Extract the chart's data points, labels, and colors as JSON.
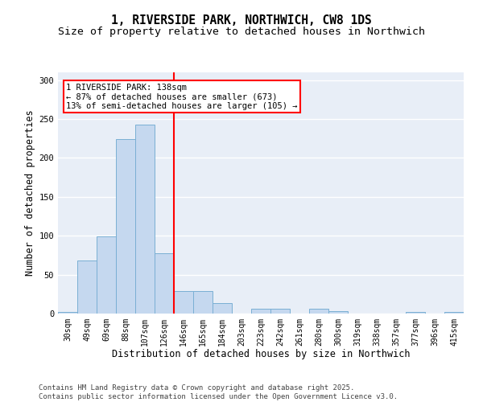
{
  "title_line1": "1, RIVERSIDE PARK, NORTHWICH, CW8 1DS",
  "title_line2": "Size of property relative to detached houses in Northwich",
  "xlabel": "Distribution of detached houses by size in Northwich",
  "ylabel": "Number of detached properties",
  "categories": [
    "30sqm",
    "49sqm",
    "69sqm",
    "88sqm",
    "107sqm",
    "126sqm",
    "146sqm",
    "165sqm",
    "184sqm",
    "203sqm",
    "223sqm",
    "242sqm",
    "261sqm",
    "280sqm",
    "300sqm",
    "319sqm",
    "338sqm",
    "357sqm",
    "377sqm",
    "396sqm",
    "415sqm"
  ],
  "values": [
    2,
    68,
    99,
    224,
    243,
    77,
    29,
    29,
    13,
    0,
    6,
    6,
    0,
    6,
    3,
    0,
    0,
    0,
    2,
    0,
    2
  ],
  "bar_color": "#c5d8ef",
  "bar_edge_color": "#7aafd4",
  "vline_x": 5.5,
  "vline_color": "red",
  "annotation_text": "1 RIVERSIDE PARK: 138sqm\n← 87% of detached houses are smaller (673)\n13% of semi-detached houses are larger (105) →",
  "annotation_box_color": "white",
  "annotation_box_edge_color": "red",
  "ylim": [
    0,
    310
  ],
  "yticks": [
    0,
    50,
    100,
    150,
    200,
    250,
    300
  ],
  "background_color": "#e8eef7",
  "grid_color": "white",
  "footer": "Contains HM Land Registry data © Crown copyright and database right 2025.\nContains public sector information licensed under the Open Government Licence v3.0.",
  "title_fontsize": 10.5,
  "subtitle_fontsize": 9.5,
  "annotation_fontsize": 7.5,
  "axis_label_fontsize": 8.5,
  "tick_fontsize": 7,
  "footer_fontsize": 6.5
}
